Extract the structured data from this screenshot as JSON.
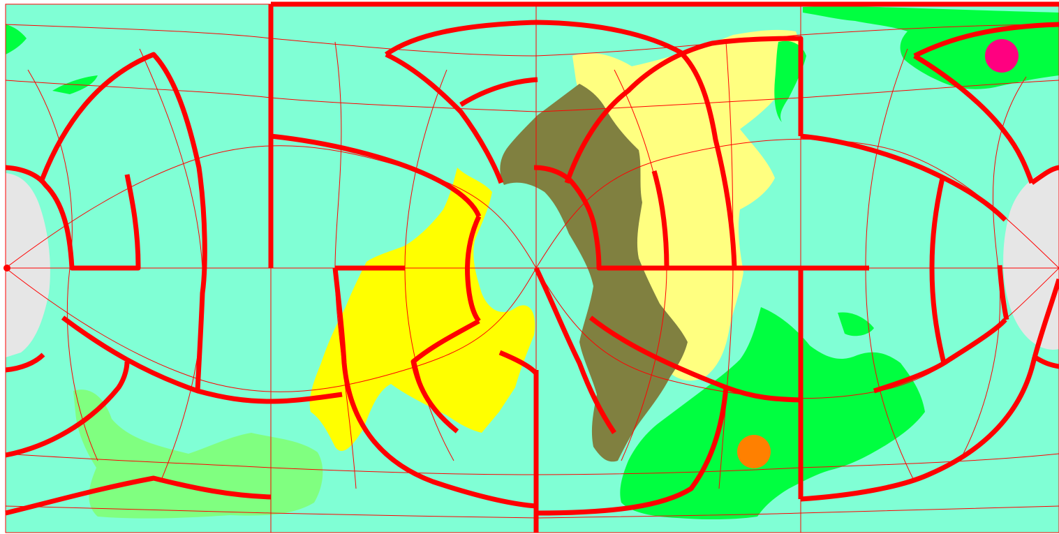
{
  "map": {
    "projection": "equirectangular",
    "colors": {
      "ocean": "#80ffd5",
      "polar_ice": "#e6e6e6",
      "graticule": "#ff0000",
      "boundary": "#ff0000",
      "land_bright_yellow": "#ffff00",
      "land_pale_yellow": "#ffff80",
      "land_olive": "#808040",
      "land_green": "#00ff40",
      "land_light_green": "#80ff80",
      "marker_magenta": "#ff0080",
      "marker_orange": "#ff8000"
    },
    "regions": [
      "polar-ice-west",
      "polar-ice-east",
      "olive-continent",
      "bright-yellow-continent",
      "pale-yellow-continent",
      "green-continent-north",
      "green-continent-south",
      "light-green-continent"
    ],
    "markers": [
      {
        "name": "magenta-marker",
        "color": "#ff0080"
      },
      {
        "name": "orange-marker",
        "color": "#ff8000"
      }
    ]
  }
}
